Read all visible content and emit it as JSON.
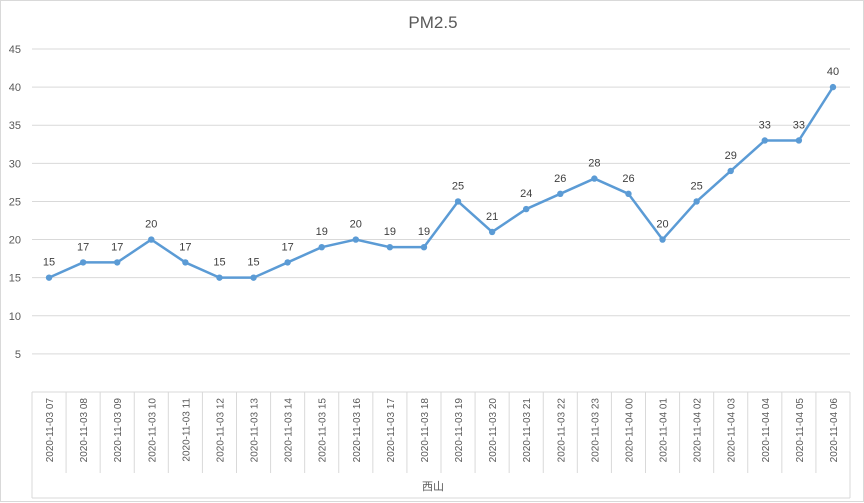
{
  "chart_data": {
    "type": "line",
    "title": "PM2.5",
    "xlabel": "西山",
    "ylabel": "",
    "ylim": [
      0,
      45
    ],
    "yticks": [
      5,
      10,
      15,
      20,
      25,
      30,
      35,
      40,
      45
    ],
    "grid": true,
    "categories": [
      "2020-11-03 07",
      "2020-11-03 08",
      "2020-11-03 09",
      "2020-11-03 10",
      "2020-11-03 11",
      "2020-11-03 12",
      "2020-11-03 13",
      "2020-11-03 14",
      "2020-11-03 15",
      "2020-11-03 16",
      "2020-11-03 17",
      "2020-11-03 18",
      "2020-11-03 19",
      "2020-11-03 20",
      "2020-11-03 21",
      "2020-11-03 22",
      "2020-11-03 23",
      "2020-11-04 00",
      "2020-11-04 01",
      "2020-11-04 02",
      "2020-11-04 03",
      "2020-11-04 04",
      "2020-11-04 05",
      "2020-11-04 06"
    ],
    "series": [
      {
        "values": [
          15,
          17,
          17,
          20,
          17,
          15,
          15,
          17,
          19,
          20,
          19,
          19,
          25,
          21,
          24,
          26,
          28,
          26,
          20,
          25,
          29,
          33,
          33,
          40
        ]
      }
    ],
    "colors": {
      "line": "#5b9bd5"
    }
  }
}
